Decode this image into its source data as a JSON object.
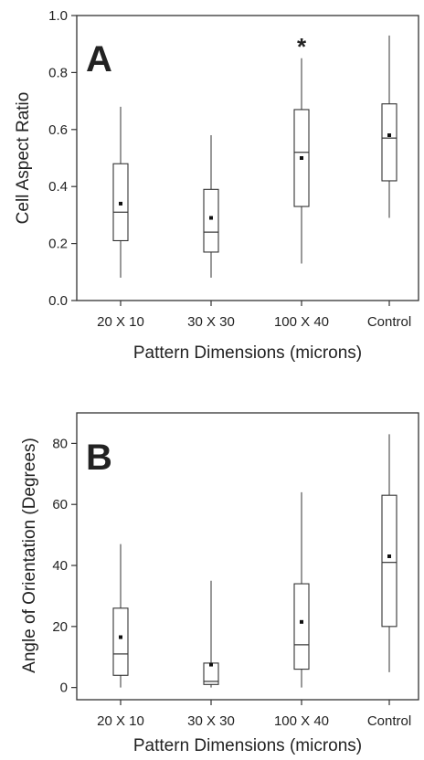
{
  "chart_data": [
    {
      "type": "box",
      "panel_label": "A",
      "xlabel": "Pattern Dimensions (microns)",
      "ylabel": "Cell Aspect Ratio",
      "categories": [
        "20 X 10",
        "30 X 30",
        "100 X 40",
        "Control"
      ],
      "ylim": [
        0.0,
        1.0
      ],
      "yticks": [
        0.0,
        0.2,
        0.4,
        0.6,
        0.8,
        1.0
      ],
      "ytick_labels": [
        "0.0",
        "0.2",
        "0.4",
        "0.6",
        "0.8",
        "1.0"
      ],
      "boxes": [
        {
          "category": "20 X 10",
          "min": 0.08,
          "q1": 0.21,
          "median": 0.31,
          "q3": 0.48,
          "max": 0.68,
          "mean": 0.34
        },
        {
          "category": "30 X 30",
          "min": 0.08,
          "q1": 0.17,
          "median": 0.24,
          "q3": 0.39,
          "max": 0.58,
          "mean": 0.29
        },
        {
          "category": "100 X 40",
          "min": 0.13,
          "q1": 0.33,
          "median": 0.52,
          "q3": 0.67,
          "max": 0.85,
          "mean": 0.5,
          "annotation": "*"
        },
        {
          "category": "Control",
          "min": 0.29,
          "q1": 0.42,
          "median": 0.57,
          "q3": 0.69,
          "max": 0.93,
          "mean": 0.58
        }
      ]
    },
    {
      "type": "box",
      "panel_label": "B",
      "xlabel": "Pattern Dimensions (microns)",
      "ylabel": "Angle of Orientation (Degrees)",
      "categories": [
        "20 X 10",
        "30 X 30",
        "100 X 40",
        "Control"
      ],
      "ylim": [
        -4,
        90
      ],
      "yticks": [
        0,
        20,
        40,
        60,
        80
      ],
      "ytick_labels": [
        "0",
        "20",
        "40",
        "60",
        "80"
      ],
      "boxes": [
        {
          "category": "20 X 10",
          "min": 0,
          "q1": 4,
          "median": 11,
          "q3": 26,
          "max": 47,
          "mean": 16.5
        },
        {
          "category": "30 X 30",
          "min": 0,
          "q1": 1,
          "median": 2,
          "q3": 8,
          "max": 35,
          "mean": 7.5
        },
        {
          "category": "100 X 40",
          "min": 0,
          "q1": 6,
          "median": 14,
          "q3": 34,
          "max": 64,
          "mean": 21.5
        },
        {
          "category": "Control",
          "min": 5,
          "q1": 20,
          "median": 41,
          "q3": 63,
          "max": 83,
          "mean": 43
        }
      ]
    }
  ]
}
